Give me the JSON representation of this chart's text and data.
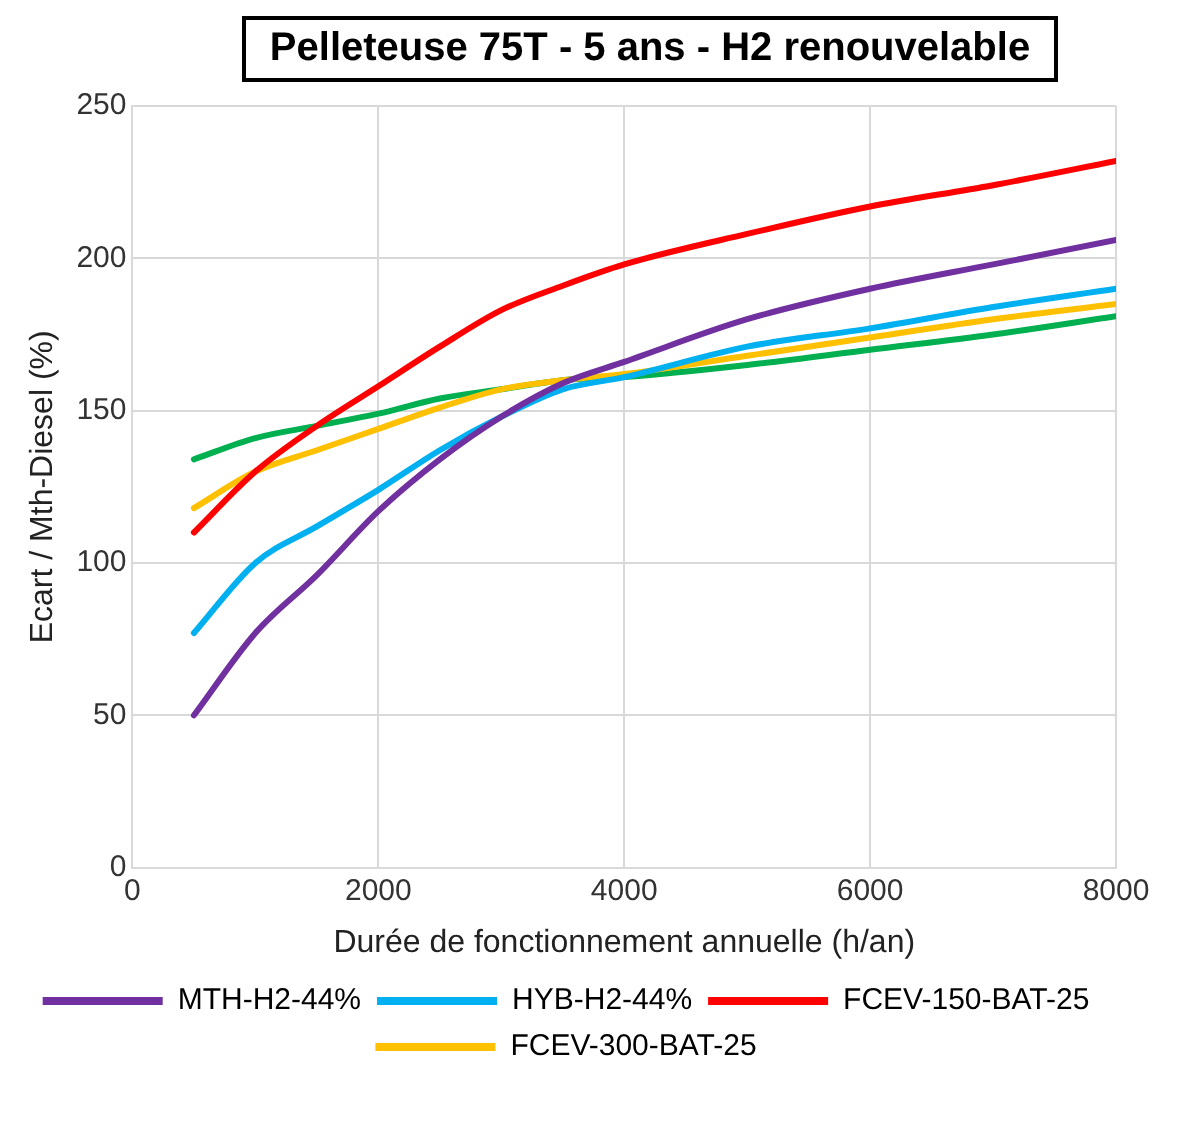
{
  "chart_data": {
    "type": "line",
    "title": "Pelleteuse 75T - 5 ans - H2 renouvelable",
    "xlabel": "Durée de fonctionnement annuelle (h/an)",
    "ylabel": "Ecart / Mth-Diesel (%)",
    "x": [
      500,
      1000,
      1500,
      2000,
      2500,
      3000,
      3500,
      4000,
      5000,
      6000,
      7000,
      8000
    ],
    "series": [
      {
        "name": "MTH-H2-44%",
        "color": "#7030a0",
        "values": [
          50,
          77,
          96,
          117,
          134,
          148,
          159,
          166,
          180,
          190,
          198,
          206
        ]
      },
      {
        "name": "HYB-H2-44%",
        "color": "#00b0f0",
        "values": [
          77,
          100,
          112,
          124,
          137,
          148,
          157,
          161,
          171,
          177,
          184,
          190
        ]
      },
      {
        "name": "FCEV-150-BAT-25",
        "color": "#ff0000",
        "values": [
          110,
          130,
          145,
          158,
          171,
          183,
          191,
          198,
          208,
          217,
          224,
          232
        ]
      },
      {
        "name": "FCEV-300-BAT-25",
        "color": "#ffc000",
        "values": [
          118,
          130,
          137,
          144,
          151,
          157,
          160,
          162,
          168,
          174,
          180,
          185
        ]
      },
      {
        "color": "#00b050",
        "values": [
          134,
          141,
          145,
          149,
          154,
          157,
          160,
          161,
          165,
          170,
          175,
          181
        ]
      }
    ],
    "xlim": [
      0,
      8000
    ],
    "xticks": [
      0,
      2000,
      4000,
      6000,
      8000
    ],
    "ylim": [
      0,
      250
    ],
    "yticks": [
      0,
      50,
      100,
      150,
      200,
      250
    ],
    "grid": true,
    "legend": "bottom",
    "marker": "none",
    "line_style": "solid"
  }
}
